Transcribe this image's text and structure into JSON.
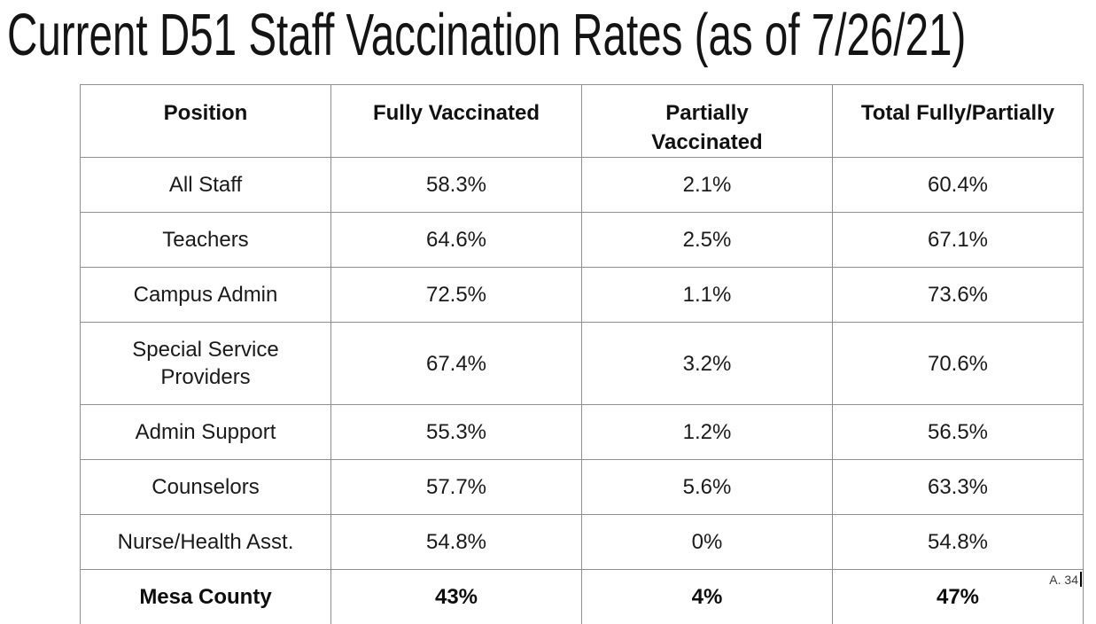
{
  "title": "Current D51 Staff Vaccination Rates (as of 7/26/21)",
  "annotation": {
    "label": "A. 34"
  },
  "table": {
    "columns": [
      "Position",
      "Fully Vaccinated",
      "Partially\nVaccinated",
      "Total Fully/Partially"
    ],
    "rows": [
      {
        "cells": [
          "All Staff",
          "58.3%",
          "2.1%",
          "60.4%"
        ],
        "style": "regular"
      },
      {
        "cells": [
          "Teachers",
          "64.6%",
          "2.5%",
          "67.1%"
        ],
        "style": "regular"
      },
      {
        "cells": [
          "Campus Admin",
          "72.5%",
          "1.1%",
          "73.6%"
        ],
        "style": "regular"
      },
      {
        "cells": [
          "Special Service\nProviders",
          "67.4%",
          "3.2%",
          "70.6%"
        ],
        "style": "regular"
      },
      {
        "cells": [
          "Admin Support",
          "55.3%",
          "1.2%",
          "56.5%"
        ],
        "style": "regular"
      },
      {
        "cells": [
          "Counselors",
          "57.7%",
          "5.6%",
          "63.3%"
        ],
        "style": "regular"
      },
      {
        "cells": [
          "Nurse/Health Asst.",
          "54.8%",
          "0%",
          "54.8%"
        ],
        "style": "regular"
      },
      {
        "cells": [
          "Mesa County",
          "43%",
          "4%",
          "47%"
        ],
        "style": "bold"
      }
    ]
  },
  "colors": {
    "background": "#ffffff",
    "table_border": "#8f8f8f",
    "text": "#1a1a1a"
  }
}
